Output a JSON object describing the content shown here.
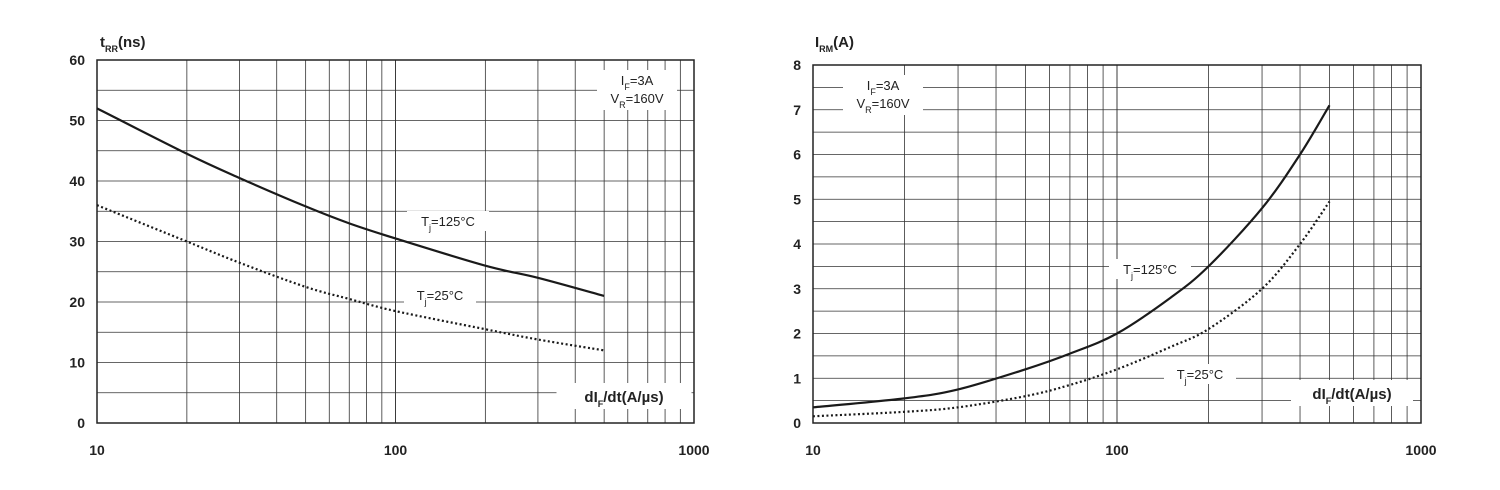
{
  "chart_data": [
    {
      "type": "line",
      "title": "",
      "ylabel": {
        "base": "t",
        "sub": "RR",
        "rest": "(ns)"
      },
      "xlabel": {
        "pre": "dI",
        "sub": "F",
        "rest": "/dt(A/µs)"
      },
      "xscale": "log",
      "xlim": [
        10,
        1000
      ],
      "ylim": [
        0,
        60
      ],
      "x_ticks": [
        "10",
        "100",
        "1000"
      ],
      "y_ticks": [
        "0",
        "10",
        "20",
        "30",
        "40",
        "50",
        "60"
      ],
      "conditions": [
        {
          "base": "I",
          "sub": "F",
          "rest": "=3A"
        },
        {
          "base": "V",
          "sub": "R",
          "rest": "=160V"
        }
      ],
      "series": [
        {
          "name": "Tj=125°C",
          "label": {
            "base": "T",
            "sub": "j",
            "rest": "=125°C"
          },
          "style": "solid",
          "x": [
            10,
            20,
            30,
            50,
            70,
            100,
            200,
            300,
            500
          ],
          "y": [
            52,
            44.5,
            40.5,
            35.8,
            33,
            30.5,
            26,
            24,
            21
          ]
        },
        {
          "name": "Tj=25°C",
          "label": {
            "base": "T",
            "sub": "j",
            "rest": "=25°C"
          },
          "style": "dotted",
          "x": [
            10,
            20,
            30,
            50,
            70,
            100,
            200,
            300,
            500
          ],
          "y": [
            36,
            30,
            26.5,
            22.5,
            20.5,
            18.5,
            15.5,
            13.8,
            12
          ]
        }
      ]
    },
    {
      "type": "line",
      "title": "",
      "ylabel": {
        "base": "I",
        "sub": "RM",
        "rest": "(A)"
      },
      "xlabel": {
        "pre": "dI",
        "sub": "F",
        "rest": "/dt(A/µs)"
      },
      "xscale": "log",
      "xlim": [
        10,
        1000
      ],
      "ylim": [
        0,
        8
      ],
      "x_ticks": [
        "10",
        "100",
        "1000"
      ],
      "y_ticks": [
        "0",
        "1",
        "2",
        "3",
        "4",
        "5",
        "6",
        "7",
        "8"
      ],
      "conditions": [
        {
          "base": "I",
          "sub": "F",
          "rest": "=3A"
        },
        {
          "base": "V",
          "sub": "R",
          "rest": "=160V"
        }
      ],
      "series": [
        {
          "name": "Tj=125°C",
          "label": {
            "base": "T",
            "sub": "j",
            "rest": "=125°C"
          },
          "style": "solid",
          "x": [
            10,
            20,
            30,
            50,
            70,
            100,
            150,
            200,
            300,
            400,
            500
          ],
          "y": [
            0.35,
            0.55,
            0.75,
            1.2,
            1.55,
            2.0,
            2.8,
            3.5,
            4.8,
            6.0,
            7.1
          ]
        },
        {
          "name": "Tj=25°C",
          "label": {
            "base": "T",
            "sub": "j",
            "rest": "=25°C"
          },
          "style": "dotted",
          "x": [
            10,
            20,
            30,
            50,
            70,
            100,
            150,
            200,
            300,
            400,
            500
          ],
          "y": [
            0.15,
            0.25,
            0.35,
            0.6,
            0.85,
            1.2,
            1.7,
            2.1,
            3.0,
            4.0,
            4.95
          ]
        }
      ]
    }
  ]
}
